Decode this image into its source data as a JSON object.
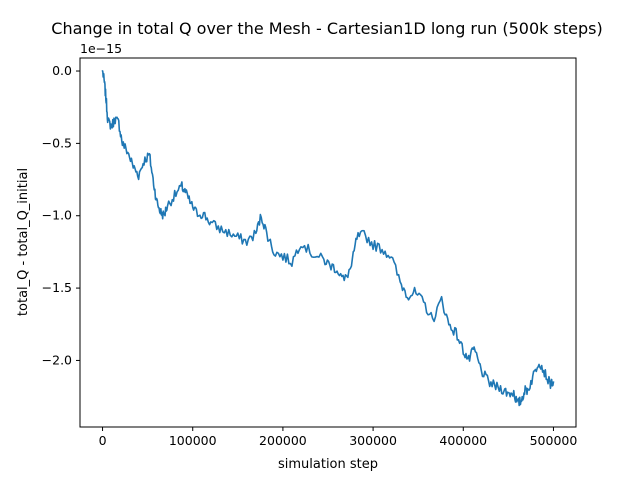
{
  "chart_data": {
    "type": "line",
    "title": "Change in total Q over the Mesh - Cartesian1D long run (500k steps)",
    "xlabel": "simulation step",
    "ylabel": "total_Q - total_Q_initial",
    "y_offset_label": "1e−15",
    "xlim": [
      -25000,
      525000
    ],
    "ylim": [
      -2.46,
      0.09
    ],
    "x_ticks": [
      0,
      100000,
      200000,
      300000,
      400000,
      500000
    ],
    "x_tick_labels": [
      "0",
      "100000",
      "200000",
      "300000",
      "400000",
      "500000"
    ],
    "y_ticks": [
      0.0,
      -0.5,
      -1.0,
      -1.5,
      -2.0
    ],
    "y_tick_labels": [
      "0.0",
      "−0.5",
      "−1.0",
      "−1.5",
      "−2.0"
    ],
    "y_scale": "linear",
    "grid": false,
    "line_color": "#1f77b4",
    "series": [
      {
        "x": [
          0,
          2000,
          4000,
          6000,
          10000,
          14000,
          18000,
          22000,
          28000,
          34000,
          40000,
          46000,
          52000,
          56000,
          60000,
          64000,
          68000,
          72000,
          80000,
          88000,
          92000,
          98000,
          104000,
          112000,
          120000,
          130000,
          140000,
          150000,
          160000,
          170000,
          176000,
          182000,
          190000,
          200000,
          210000,
          220000,
          232000,
          244000,
          252000,
          260000,
          268000,
          276000,
          282000,
          290000,
          300000,
          310000,
          320000,
          330000,
          338000,
          346000,
          356000,
          366000,
          376000,
          384000,
          392000,
          400000,
          406000,
          412000,
          420000,
          428000,
          436000,
          444000,
          450000,
          456000,
          460000,
          464000,
          468000,
          472000,
          478000,
          484000,
          490000,
          496000,
          500000
        ],
        "values": [
          0.0,
          -0.08,
          -0.2,
          -0.35,
          -0.38,
          -0.33,
          -0.36,
          -0.5,
          -0.56,
          -0.66,
          -0.72,
          -0.62,
          -0.58,
          -0.75,
          -0.9,
          -0.97,
          -1.0,
          -0.93,
          -0.86,
          -0.8,
          -0.84,
          -0.92,
          -0.98,
          -0.99,
          -1.05,
          -1.09,
          -1.12,
          -1.15,
          -1.18,
          -1.12,
          -1.0,
          -1.12,
          -1.25,
          -1.28,
          -1.32,
          -1.18,
          -1.26,
          -1.3,
          -1.34,
          -1.37,
          -1.45,
          -1.35,
          -1.15,
          -1.13,
          -1.2,
          -1.23,
          -1.28,
          -1.46,
          -1.55,
          -1.53,
          -1.6,
          -1.72,
          -1.58,
          -1.75,
          -1.81,
          -1.93,
          -2.0,
          -1.92,
          -2.07,
          -2.15,
          -2.18,
          -2.2,
          -2.23,
          -2.22,
          -2.3,
          -2.28,
          -2.21,
          -2.2,
          -2.1,
          -2.0,
          -2.08,
          -2.16,
          -2.15
        ]
      }
    ]
  }
}
